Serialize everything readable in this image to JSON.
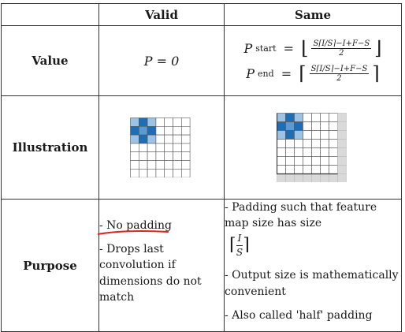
{
  "headers": {
    "valid": "Valid",
    "same": "Same"
  },
  "rows": {
    "value": {
      "label": "Value",
      "valid_eq": "P = 0"
    },
    "illustration": {
      "label": "Illustration"
    },
    "purpose": {
      "label": "Purpose",
      "valid_items": [
        "- No padding",
        "- Drops last convolution if dimensions do not match"
      ],
      "same_items": [
        "- Padding such that feature map size has size",
        "- Output size is mathematically convenient",
        "- Also called 'half' padding"
      ]
    }
  },
  "same_eq": {
    "start_label": "P",
    "start_sub": "start",
    "end_label": "P",
    "end_sub": "end",
    "numerator": "S⌈I/S⌉−I+F−S",
    "denominator": "2",
    "ceil_num": "I",
    "ceil_den": "S"
  },
  "colors": {
    "dark_blue": "#1f6eb5",
    "mid_blue": "#5b9bd5",
    "light_blue": "#9cc3e6",
    "pad_gray": "#d9d9d9",
    "annotation_red": "#d9261c"
  }
}
